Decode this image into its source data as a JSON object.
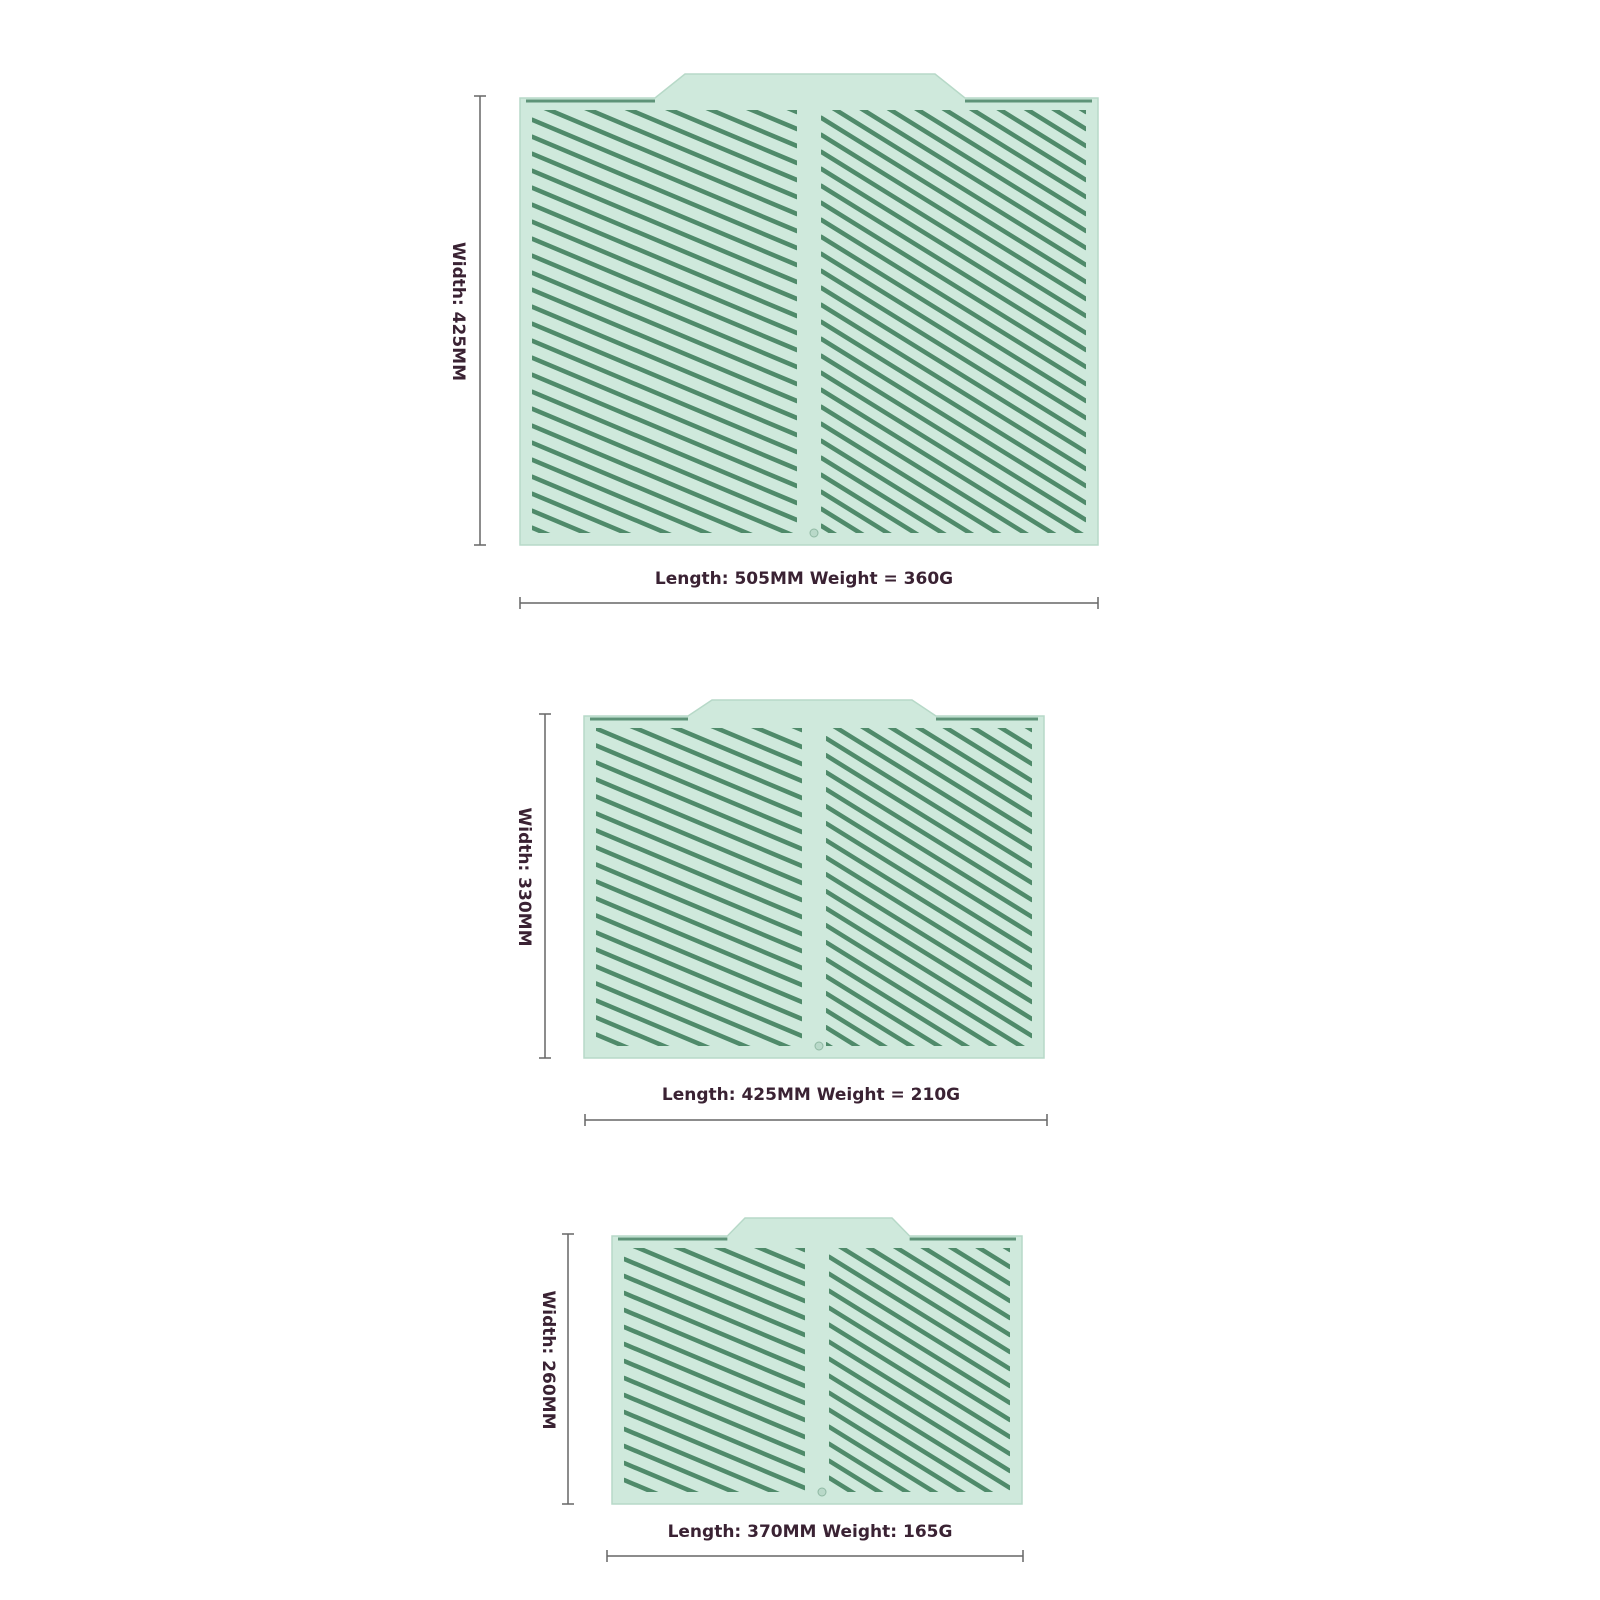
{
  "products": [
    {
      "width_label": "Width: 425MM",
      "length_label": "Length: 505MM Weight = 360G"
    },
    {
      "width_label": "Width: 330MM",
      "length_label": "Length: 425MM Weight = 210G"
    },
    {
      "width_label": "Width: 260MM",
      "length_label": "Length: 370MM Weight: 165G"
    }
  ]
}
